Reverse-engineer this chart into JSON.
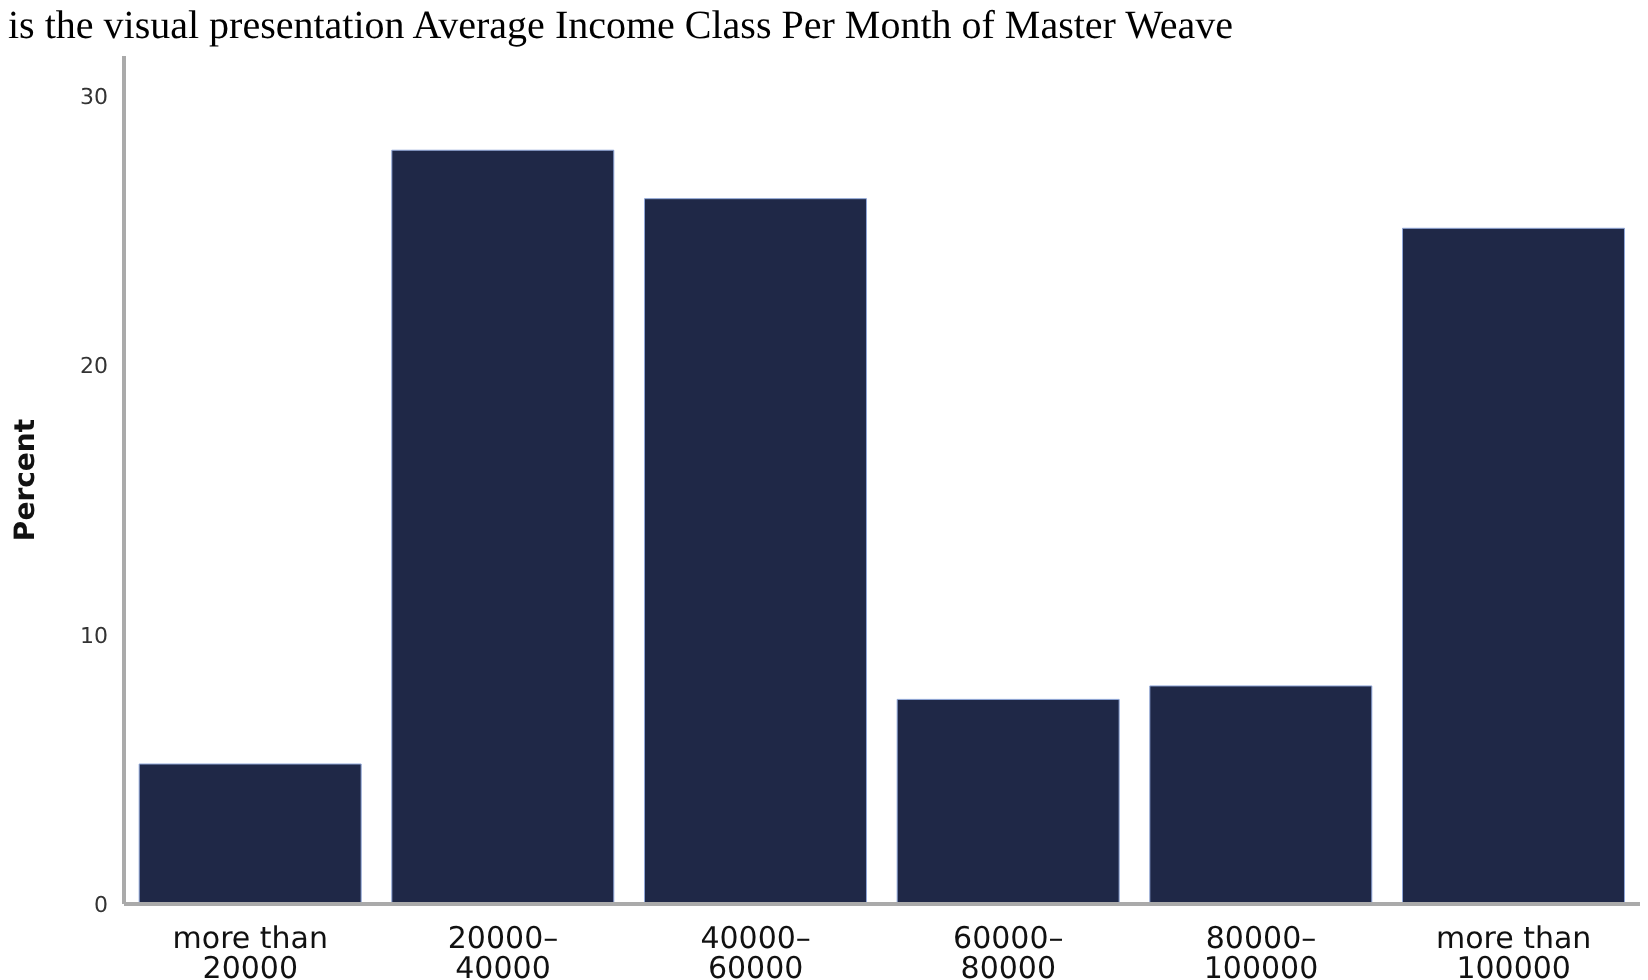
{
  "chart_data": {
    "type": "bar",
    "title": "is the visual presentation Average Income Class Per Month of Master Weave",
    "ylabel": "Percent",
    "categories": [
      "more than 20000",
      "20000–40000",
      "40000–60000",
      "60000–80000",
      "80000–100000",
      "more than 100000"
    ],
    "values": [
      5.2,
      28.0,
      26.2,
      7.6,
      8.1,
      25.1
    ],
    "color": "#1f2847",
    "ylim": [
      0,
      31.5
    ],
    "yticks": [
      0,
      10,
      20,
      30
    ],
    "grid": false
  }
}
